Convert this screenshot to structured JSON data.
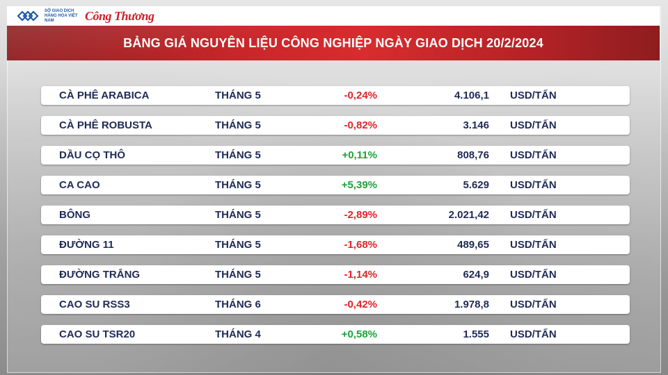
{
  "header": {
    "exchange_name": "SỞ GIAO DỊCH HÀNG HÓA VIỆT NAM",
    "brand": "Công Thương"
  },
  "title": "BẢNG GIÁ NGUYÊN LIỆU CÔNG NGHIỆP NGÀY GIAO DỊCH 20/2/2024",
  "rows": [
    {
      "name": "CÀ PHÊ ARABICA",
      "month": "THÁNG 5",
      "change": "-0,24%",
      "price": "4.106,1",
      "unit": "USD/TẤN"
    },
    {
      "name": "CÀ PHÊ ROBUSTA",
      "month": "THÁNG 5",
      "change": "-0,82%",
      "price": "3.146",
      "unit": "USD/TẤN"
    },
    {
      "name": "DẦU CỌ THÔ",
      "month": "THÁNG 5",
      "change": "+0,11%",
      "price": "808,76",
      "unit": "USD/TẤN"
    },
    {
      "name": "CA CAO",
      "month": "THÁNG 5",
      "change": "+5,39%",
      "price": "5.629",
      "unit": "USD/TẤN"
    },
    {
      "name": "BÔNG",
      "month": "THÁNG 5",
      "change": "-2,89%",
      "price": "2.021,42",
      "unit": "USD/TẤN"
    },
    {
      "name": "ĐƯỜNG 11",
      "month": "THÁNG 5",
      "change": "-1,68%",
      "price": "489,65",
      "unit": "USD/TẤN"
    },
    {
      "name": "ĐƯỜNG TRẮNG",
      "month": "THÁNG 5",
      "change": "-1,14%",
      "price": "624,9",
      "unit": "USD/TẤN"
    },
    {
      "name": "CAO SU RSS3",
      "month": "THÁNG 6",
      "change": "-0,42%",
      "price": "1.978,8",
      "unit": "USD/TẤN"
    },
    {
      "name": "CAO SU TSR20",
      "month": "THÁNG 4",
      "change": "+0,58%",
      "price": "1.555",
      "unit": "USD/TẤN"
    }
  ],
  "colors": {
    "banner_red": "#c8262a",
    "negative": "#e0222a",
    "positive": "#1aa33a",
    "text_dark": "#1f2a55"
  }
}
